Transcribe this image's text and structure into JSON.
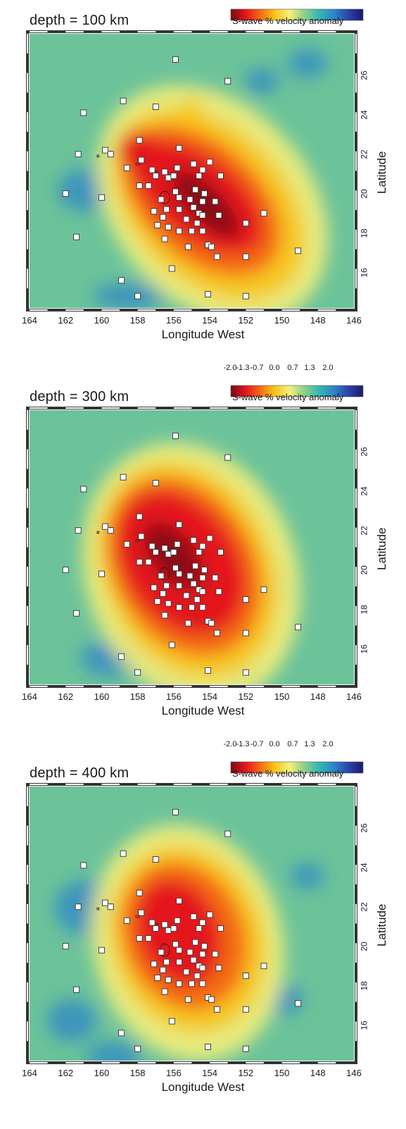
{
  "figure": {
    "colorbar": {
      "caption": "S-wave % velocity anomaly",
      "tick_labels": [
        "-2.0",
        "-1.3",
        "-0.7",
        "0.0",
        "0.7",
        "1.3",
        "2.0"
      ],
      "colors": [
        "#7a0a14",
        "#e4141c",
        "#f46a14",
        "#f7c51c",
        "#f4f07a",
        "#8ed08a",
        "#35b7b0",
        "#2e86c8",
        "#2944a8",
        "#1a1a6e"
      ]
    },
    "x_tick_labels": [
      "164",
      "162",
      "160",
      "158",
      "156",
      "154",
      "152",
      "150",
      "148",
      "146"
    ],
    "y_tick_labels": [
      "16",
      "18",
      "20",
      "22",
      "24",
      "26"
    ],
    "xlabel": "Longitude West",
    "ylabel": "Latitude"
  },
  "panels": [
    {
      "title": "depth = 100 km",
      "show_scale_ticks": false
    },
    {
      "title": "depth = 300 km",
      "show_scale_ticks": true
    },
    {
      "title": "depth = 400 km",
      "show_scale_ticks": true
    }
  ],
  "map_data": {
    "lon_range_west": [
      164,
      146
    ],
    "lat_range": [
      14.2,
      28.1
    ],
    "stations": [
      [
        155.9,
        26.8
      ],
      [
        153.0,
        25.7
      ],
      [
        158.8,
        24.7
      ],
      [
        157.0,
        24.4
      ],
      [
        161.0,
        24.1
      ],
      [
        157.9,
        22.7
      ],
      [
        155.7,
        22.3
      ],
      [
        159.8,
        22.2
      ],
      [
        161.3,
        22.0
      ],
      [
        159.5,
        22.0
      ],
      [
        154.0,
        21.6
      ],
      [
        154.9,
        21.5
      ],
      [
        157.8,
        21.7
      ],
      [
        158.6,
        21.3
      ],
      [
        157.2,
        21.2
      ],
      [
        156.5,
        21.1
      ],
      [
        155.8,
        21.3
      ],
      [
        154.4,
        21.2
      ],
      [
        154.6,
        20.9
      ],
      [
        153.4,
        20.9
      ],
      [
        156.3,
        20.8
      ],
      [
        156.0,
        20.9
      ],
      [
        157.0,
        20.9
      ],
      [
        157.9,
        20.4
      ],
      [
        157.4,
        20.4
      ],
      [
        155.9,
        20.1
      ],
      [
        154.8,
        20.2
      ],
      [
        154.3,
        20.0
      ],
      [
        160.0,
        19.8
      ],
      [
        162.0,
        20.0
      ],
      [
        155.7,
        19.8
      ],
      [
        155.1,
        19.7
      ],
      [
        156.7,
        19.7
      ],
      [
        154.4,
        19.6
      ],
      [
        154.9,
        19.3
      ],
      [
        155.7,
        19.2
      ],
      [
        153.7,
        19.6
      ],
      [
        156.4,
        19.2
      ],
      [
        154.6,
        19.0
      ],
      [
        157.1,
        19.1
      ],
      [
        154.4,
        18.9
      ],
      [
        153.5,
        18.9
      ],
      [
        156.6,
        18.8
      ],
      [
        155.3,
        18.7
      ],
      [
        151.0,
        19.0
      ],
      [
        154.7,
        18.5
      ],
      [
        152.0,
        18.5
      ],
      [
        156.9,
        18.4
      ],
      [
        156.3,
        18.3
      ],
      [
        155.7,
        18.1
      ],
      [
        155.0,
        18.1
      ],
      [
        154.4,
        18.1
      ],
      [
        161.4,
        17.8
      ],
      [
        156.5,
        17.7
      ],
      [
        155.2,
        17.3
      ],
      [
        154.1,
        17.4
      ],
      [
        153.9,
        17.3
      ],
      [
        152.0,
        16.8
      ],
      [
        153.6,
        16.8
      ],
      [
        149.1,
        17.1
      ],
      [
        156.1,
        16.2
      ],
      [
        158.9,
        15.6
      ],
      [
        158.0,
        14.8
      ],
      [
        154.1,
        14.9
      ],
      [
        152.0,
        14.8
      ]
    ]
  }
}
